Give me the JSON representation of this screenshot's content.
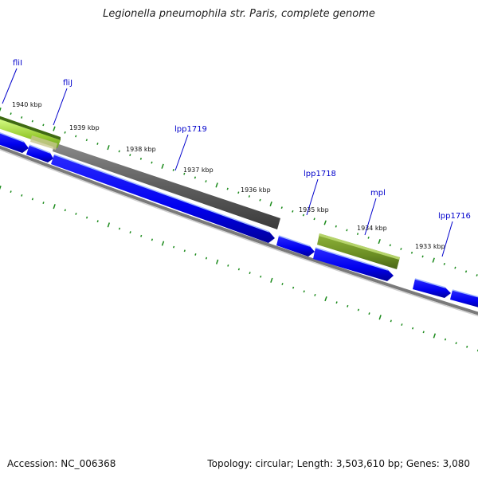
{
  "title": "Legionella pneumophila str. Paris, complete genome",
  "footer": {
    "accession": "Accession: NC_006368",
    "summary": "Topology: circular; Length: 3,503,610 bp; Genes: 3,080"
  },
  "ticks": [
    "1940 kbp",
    "1939 kbp",
    "1938 kbp",
    "1937 kbp",
    "1936 kbp",
    "1935 kbp",
    "1934 kbp",
    "1933 kbp"
  ],
  "genes": [
    "fliI",
    "fliJ",
    "lpp1719",
    "lpp1718",
    "mpl",
    "lpp1716"
  ],
  "colors": {
    "forward_gene": "#0000ee",
    "reverse_gene": "#5a5a5a",
    "highlight_green": "#6b8e23",
    "light_green": "#9acd32",
    "backbone": "#808080",
    "tick": "#1a8a1a",
    "label": "#0000cc"
  }
}
